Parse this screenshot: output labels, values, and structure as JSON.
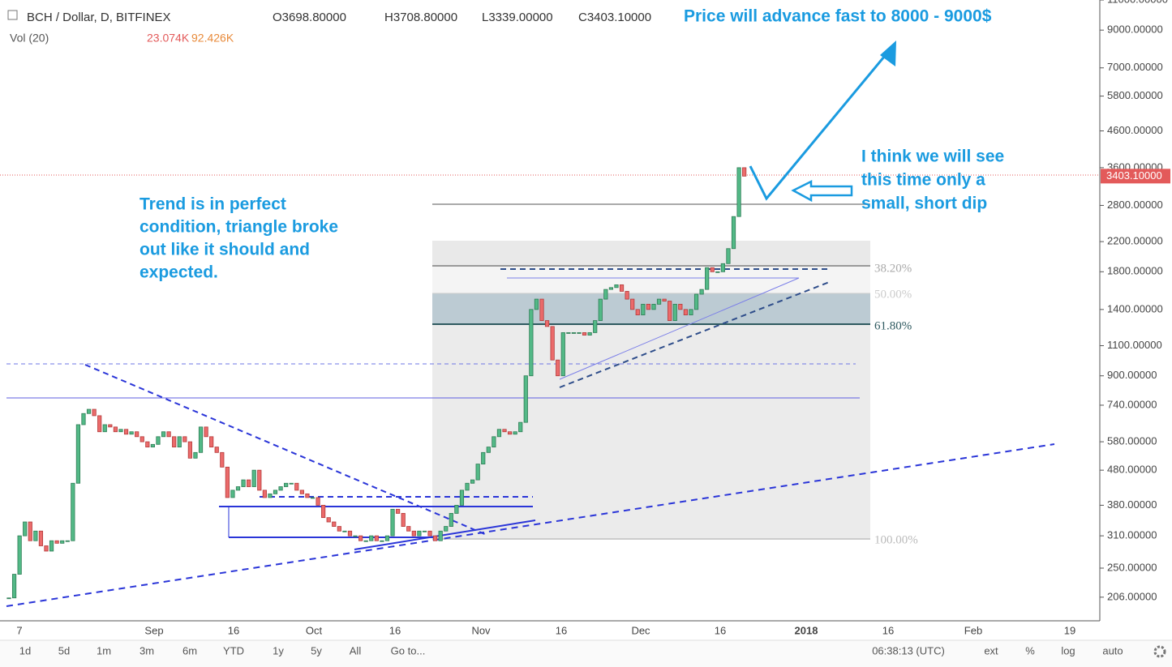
{
  "header": {
    "symbol": "BCH / Dollar, D, BITFINEX",
    "open": "O3698.80000",
    "high": "H3708.80000",
    "low": "L3339.00000",
    "close": "C3403.10000",
    "volume_label": "Vol (20)",
    "volume": "23.074K",
    "volume_ma": "92.426K"
  },
  "price_axis": {
    "scale": "log",
    "ylim": [
      176,
      11000
    ],
    "ticks": [
      {
        "value": 11000,
        "label": "11000.00000"
      },
      {
        "value": 9000,
        "label": "9000.00000"
      },
      {
        "value": 7000,
        "label": "7000.00000"
      },
      {
        "value": 5800,
        "label": "5800.00000"
      },
      {
        "value": 4600,
        "label": "4600.00000"
      },
      {
        "value": 3600,
        "label": "3600.00000"
      },
      {
        "value": 2800,
        "label": "2800.00000"
      },
      {
        "value": 2200,
        "label": "2200.00000"
      },
      {
        "value": 1800,
        "label": "1800.00000"
      },
      {
        "value": 1400,
        "label": "1400.00000"
      },
      {
        "value": 1100,
        "label": "1100.00000"
      },
      {
        "value": 900,
        "label": "900.00000"
      },
      {
        "value": 740,
        "label": "740.00000"
      },
      {
        "value": 580,
        "label": "580.00000"
      },
      {
        "value": 480,
        "label": "480.00000"
      },
      {
        "value": 380,
        "label": "380.00000"
      },
      {
        "value": 310,
        "label": "310.00000"
      },
      {
        "value": 250,
        "label": "250.00000"
      },
      {
        "value": 206,
        "label": "206.00000"
      }
    ],
    "last_price": {
      "value": 3403.1,
      "label": "3403.10000"
    }
  },
  "time_axis": [
    "7",
    "Sep",
    "16",
    "Oct",
    "16",
    "Nov",
    "16",
    "Dec",
    "16",
    "2018",
    "16",
    "Feb",
    "19"
  ],
  "closes": [
    205,
    240,
    310,
    340,
    300,
    320,
    290,
    280,
    300,
    295,
    300,
    300,
    440,
    650,
    700,
    720,
    690,
    620,
    650,
    640,
    620,
    630,
    610,
    620,
    600,
    580,
    560,
    570,
    600,
    620,
    600,
    560,
    600,
    580,
    520,
    540,
    640,
    600,
    560,
    540,
    490,
    400,
    420,
    430,
    450,
    430,
    480,
    420,
    400,
    410,
    420,
    430,
    440,
    440,
    420,
    410,
    400,
    400,
    380,
    350,
    340,
    330,
    320,
    320,
    310,
    310,
    300,
    300,
    310,
    300,
    300,
    310,
    370,
    360,
    330,
    320,
    310,
    320,
    320,
    310,
    300,
    320,
    330,
    360,
    380,
    420,
    440,
    450,
    500,
    540,
    560,
    600,
    630,
    620,
    610,
    620,
    660,
    900,
    1400,
    1500,
    1300,
    1250,
    1000,
    900,
    1200,
    1200,
    1200,
    1200,
    1180,
    1200,
    1300,
    1500,
    1600,
    1620,
    1650,
    1580,
    1500,
    1400,
    1350,
    1450,
    1400,
    1450,
    1500,
    1480,
    1300,
    1450,
    1400,
    1350,
    1400,
    1550,
    1600,
    1850,
    1800,
    1800,
    1900,
    2100,
    2600,
    3600,
    3403
  ],
  "fib_levels": [
    "38.20%",
    "50.00%",
    "61.80%",
    "100.00%"
  ],
  "annotations": {
    "target": "Price will advance fast to 8000 - 9000$",
    "trend": [
      "Trend is in perfect",
      "condition, triangle broke",
      "out like it should and",
      "expected."
    ],
    "dip": [
      "I think we will see",
      "this time only a",
      "small, short dip"
    ]
  },
  "toolbar": {
    "ranges": [
      "1d",
      "5d",
      "1m",
      "3m",
      "6m",
      "YTD",
      "1y",
      "5y",
      "All",
      "Go to..."
    ],
    "clock": "06:38:13 (UTC)",
    "options": [
      "ext",
      "%",
      "log",
      "auto"
    ]
  }
}
